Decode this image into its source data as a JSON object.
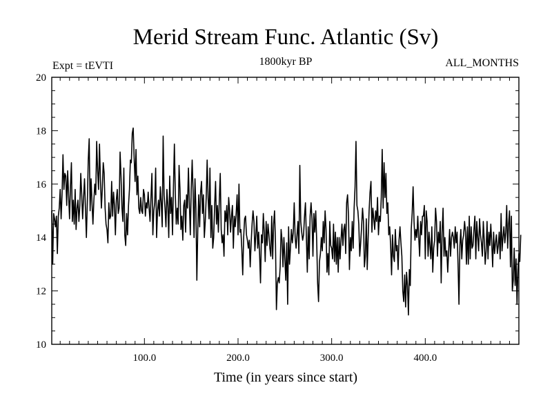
{
  "chart_data": {
    "type": "line",
    "title": "Merid Stream Func. Atlantic (Sv)",
    "left_label": "Expt = tEVTI",
    "center_label": "1800kyr BP",
    "right_label": "ALL_MONTHS",
    "xlabel": "Time (in years since start)",
    "ylabel": "",
    "xlim": [
      1,
      500
    ],
    "ylim": [
      10,
      20
    ],
    "x_ticks": [
      100,
      200,
      300,
      400
    ],
    "x_tick_labels": [
      "100.0",
      "200.0",
      "300.0",
      "400.0"
    ],
    "y_ticks": [
      10,
      12,
      14,
      16,
      18,
      20
    ],
    "y_tick_labels": [
      "10",
      "12",
      "14",
      "16",
      "18",
      "20"
    ],
    "series": [
      {
        "name": "Merid Stream Func. Atlantic",
        "color": "#000000",
        "x_start": 1,
        "x_step": 1,
        "values": [
          15.0,
          13.0,
          14.9,
          14.7,
          14.4,
          14.8,
          13.4,
          14.8,
          15.1,
          15.8,
          14.7,
          15.6,
          17.1,
          15.8,
          16.4,
          16.3,
          15.2,
          16.5,
          15.6,
          14.7,
          15.9,
          16.8,
          14.6,
          15.4,
          14.5,
          15.8,
          14.3,
          15.1,
          15.4,
          14.6,
          15.2,
          16.4,
          15.6,
          14.7,
          15.5,
          16.2,
          15.1,
          14.0,
          15.3,
          16.9,
          17.7,
          15.0,
          16.2,
          15.3,
          14.5,
          15.4,
          16.0,
          15.6,
          17.6,
          16.5,
          15.8,
          17.5,
          16.2,
          15.1,
          15.8,
          16.8,
          16.4,
          15.1,
          14.5,
          14.3,
          13.8,
          15.3,
          14.7,
          14.8,
          16.1,
          14.8,
          15.7,
          15.2,
          14.1,
          15.4,
          15.8,
          14.9,
          15.1,
          17.2,
          16.3,
          15.1,
          14.6,
          16.6,
          14.1,
          13.7,
          14.9,
          14.1,
          15.2,
          15.8,
          16.9,
          16.8,
          17.9,
          18.1,
          17.0,
          16.1,
          17.3,
          15.6,
          16.3,
          15.1,
          14.9,
          15.5,
          15.0,
          14.9,
          15.8,
          15.6,
          14.8,
          15.3,
          15.1,
          15.7,
          15.1,
          14.6,
          15.5,
          16.4,
          14.1,
          15.0,
          15.3,
          16.6,
          14.0,
          15.0,
          15.4,
          14.8,
          15.9,
          15.3,
          14.4,
          17.8,
          15.6,
          15.1,
          14.4,
          15.8,
          15.2,
          14.0,
          16.3,
          14.9,
          15.5,
          14.1,
          15.9,
          17.5,
          15.6,
          14.5,
          15.1,
          14.5,
          16.7,
          15.8,
          14.3,
          14.8,
          13.9,
          15.2,
          15.4,
          14.2,
          15.6,
          15.1,
          16.6,
          15.3,
          14.1,
          15.8,
          16.9,
          15.7,
          14.0,
          16.2,
          15.1,
          12.4,
          14.3,
          15.6,
          14.4,
          15.7,
          16.1,
          14.9,
          15.6,
          14.0,
          14.6,
          15.5,
          16.9,
          15.5,
          14.7,
          16.6,
          14.0,
          15.2,
          13.6,
          14.0,
          15.2,
          16.1,
          14.5,
          15.2,
          14.2,
          15.4,
          16.4,
          14.3,
          13.8,
          14.1,
          13.3,
          15.0,
          14.6,
          15.2,
          14.1,
          15.5,
          15.0,
          14.2,
          14.8,
          15.2,
          13.6,
          14.8,
          14.4,
          14.9,
          15.6,
          14.1,
          16.0,
          14.2,
          14.3,
          13.6,
          12.6,
          14.0,
          14.7,
          14.8,
          14.1,
          13.9,
          13.6,
          13.9,
          12.9,
          13.8,
          14.5,
          15.0,
          14.6,
          13.5,
          14.1,
          14.8,
          13.6,
          14.2,
          13.4,
          12.3,
          14.1,
          13.8,
          14.9,
          14.2,
          13.1,
          14.6,
          13.7,
          14.5,
          14.1,
          13.6,
          13.3,
          14.8,
          13.2,
          14.5,
          15.0,
          13.8,
          11.3,
          12.3,
          12.5,
          12.3,
          12.9,
          14.3,
          13.9,
          12.9,
          14.0,
          13.2,
          12.4,
          13.8,
          11.5,
          14.4,
          13.0,
          13.6,
          14.3,
          13.8,
          14.2,
          15.3,
          14.0,
          13.6,
          14.1,
          14.6,
          13.4,
          16.7,
          14.6,
          14.2,
          13.9,
          14.1,
          14.8,
          15.3,
          14.0,
          12.7,
          14.4,
          13.2,
          14.8,
          15.3,
          14.7,
          13.3,
          14.9,
          14.2,
          15.0,
          13.9,
          12.3,
          11.6,
          13.1,
          13.4,
          14.0,
          13.5,
          14.6,
          13.8,
          15.0,
          14.3,
          12.7,
          13.4,
          12.6,
          14.6,
          13.7,
          13.6,
          13.2,
          14.5,
          13.1,
          14.2,
          13.0,
          14.0,
          12.7,
          14.0,
          13.2,
          13.9,
          14.5,
          13.7,
          14.3,
          14.5,
          13.4,
          15.3,
          15.6,
          14.8,
          12.8,
          14.0,
          13.5,
          14.6,
          13.6,
          15.1,
          15.9,
          17.6,
          15.2,
          15.0,
          14.5,
          13.3,
          13.8,
          14.4,
          15.1,
          14.6,
          12.9,
          13.3,
          14.7,
          12.8,
          14.0,
          15.0,
          15.7,
          16.1,
          14.2,
          15.1,
          14.7,
          14.3,
          15.0,
          14.6,
          15.5,
          14.1,
          14.8,
          14.6,
          15.5,
          17.3,
          15.1,
          16.8,
          15.5,
          16.4,
          14.9,
          15.3,
          14.1,
          14.4,
          13.7,
          12.6,
          14.1,
          13.3,
          13.1,
          14.3,
          13.5,
          13.7,
          12.8,
          13.9,
          14.4,
          13.8,
          13.3,
          12.0,
          11.6,
          12.6,
          11.4,
          12.7,
          12.2,
          11.1,
          12.8,
          12.2,
          14.3,
          14.9,
          15.9,
          14.6,
          13.9,
          14.3,
          14.0,
          14.8,
          14.0,
          13.3,
          14.6,
          14.1,
          14.8,
          14.8,
          15.2,
          13.2,
          15.0,
          14.6,
          13.3,
          14.2,
          13.7,
          13.2,
          14.4,
          12.7,
          13.6,
          13.9,
          15.1,
          14.6,
          13.3,
          14.2,
          13.8,
          14.6,
          12.3,
          14.2,
          15.1,
          13.3,
          14.0,
          13.3,
          13.5,
          12.7,
          13.5,
          14.3,
          13.3,
          14.0,
          14.2,
          14.0,
          13.6,
          14.4,
          13.8,
          14.2,
          13.0,
          11.5,
          13.7,
          14.3,
          13.2,
          13.9,
          14.1,
          14.6,
          14.2,
          13.0,
          14.4,
          13.0,
          14.8,
          13.2,
          14.4,
          13.6,
          13.7,
          14.3,
          14.8,
          13.2,
          14.6,
          14.0,
          13.5,
          14.7,
          14.1,
          13.8,
          13.3,
          14.6,
          13.9,
          13.0,
          13.5,
          14.6,
          13.2,
          14.2,
          13.7,
          14.5,
          13.8,
          12.9,
          14.2,
          13.4,
          13.8,
          14.1,
          13.4,
          13.7,
          14.2,
          13.2,
          14.9,
          13.5,
          14.0,
          14.4,
          13.8,
          14.2,
          15.2,
          13.6,
          14.5,
          15.0,
          12.9,
          14.8,
          12.0,
          12.4,
          13.6,
          12.2,
          13.2,
          11.5,
          12.8,
          13.4,
          13.1,
          14.1
        ]
      }
    ]
  }
}
